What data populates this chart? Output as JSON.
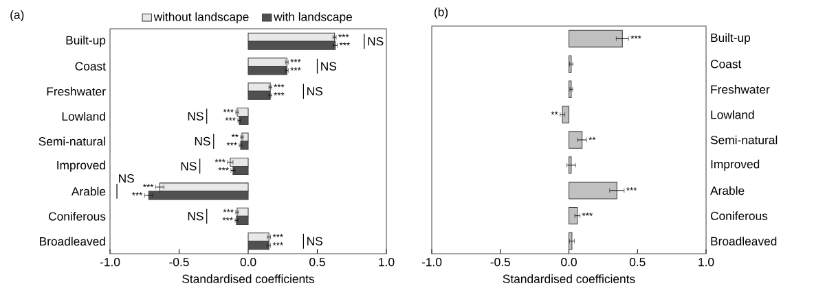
{
  "chart_data": [
    {
      "type": "bar",
      "orientation": "horizontal",
      "title": "(a)",
      "xlabel": "Standardised coefficients",
      "categories": [
        "Built-up",
        "Coast",
        "Freshwater",
        "Lowland",
        "Semi-natural",
        "Improved",
        "Arable",
        "Coniferous",
        "Broadleaved"
      ],
      "series": [
        {
          "name": "without landscape",
          "color": "#e8e8e8",
          "values": [
            0.625,
            0.28,
            0.16,
            -0.08,
            -0.045,
            -0.13,
            -0.64,
            -0.08,
            0.15
          ],
          "errors": [
            0.012,
            0.01,
            0.01,
            0.01,
            0.01,
            0.02,
            0.03,
            0.01,
            0.012
          ],
          "value_labels": [
            "***",
            "***",
            "***",
            "***",
            "**",
            "***",
            "***",
            "***",
            "***"
          ]
        },
        {
          "name": "with landscape",
          "color": "#505050",
          "values": [
            0.63,
            0.28,
            0.16,
            -0.065,
            -0.055,
            -0.11,
            -0.72,
            -0.085,
            0.15
          ],
          "errors": [
            0.015,
            0.01,
            0.01,
            0.01,
            0.01,
            0.015,
            0.03,
            0.01,
            0.012
          ],
          "value_labels": [
            "***",
            "***",
            "***",
            "***",
            "***",
            "***",
            "***",
            "***",
            "***"
          ]
        }
      ],
      "annotations": [
        "NS",
        "NS",
        "NS",
        "NS",
        "NS",
        "NS",
        "NS",
        "NS",
        "NS"
      ],
      "xlim": [
        -1,
        1
      ],
      "xticks": [
        {
          "value": -1,
          "label": "-1.0"
        },
        {
          "value": -0.5,
          "label": "-0.5"
        },
        {
          "value": 0,
          "label": "0.0"
        },
        {
          "value": 0.5,
          "label": "0.5"
        },
        {
          "value": 1,
          "label": "1.0"
        }
      ],
      "legend": "top"
    },
    {
      "type": "bar",
      "orientation": "horizontal",
      "title": "(b)",
      "xlabel": "Standardised coefficients",
      "categories": [
        "Built-up",
        "Coast",
        "Freshwater",
        "Lowland",
        "Semi-natural",
        "Improved",
        "Arable",
        "Coniferous",
        "Broadleaved"
      ],
      "series": [
        {
          "color": "#c0c0c0",
          "values": [
            0.39,
            0.017,
            0.017,
            -0.047,
            0.096,
            0.017,
            0.35,
            0.062,
            0.022
          ],
          "errors": [
            0.045,
            0.012,
            0.01,
            0.017,
            0.033,
            0.032,
            0.053,
            0.019,
            0.018
          ],
          "value_labels": [
            "***",
            null,
            null,
            "**",
            "**",
            null,
            "***",
            "***",
            null
          ]
        }
      ],
      "xlim": [
        -1,
        1
      ],
      "xticks": [
        {
          "value": -1,
          "label": "-1.0"
        },
        {
          "value": -0.5,
          "label": "-0.5"
        },
        {
          "value": 0,
          "label": "0.0"
        },
        {
          "value": 0.5,
          "label": "0.5"
        },
        {
          "value": 1,
          "label": "1.0"
        }
      ]
    }
  ]
}
